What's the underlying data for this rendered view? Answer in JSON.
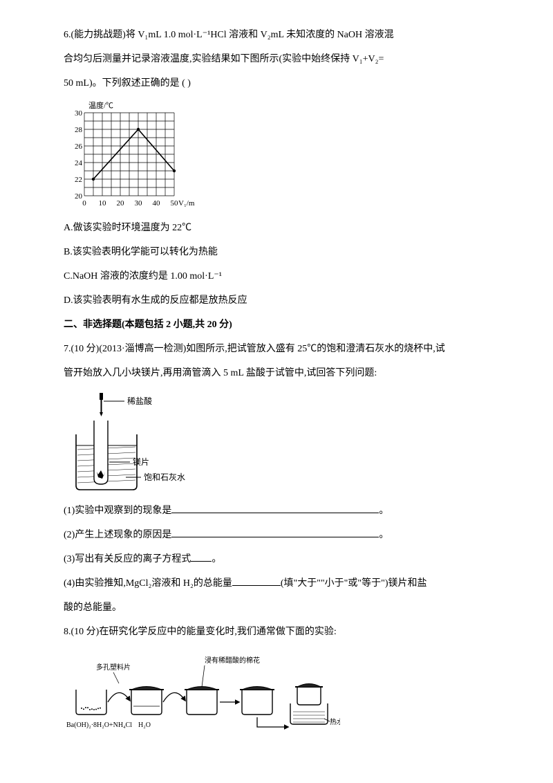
{
  "q6": {
    "line1": "6.(能力挑战题)将 V₁mL 1.0 mol·L⁻¹HCl 溶液和 V₂mL 未知浓度的 NaOH 溶液混",
    "line2": "合均匀后测量并记录溶液温度,实验结果如下图所示(实验中始终保持 V₁+V₂=",
    "line3": "50 mL)。下列叙述正确的是  (      )",
    "optA": "A.做该实验时环境温度为 22℃",
    "optB": "B.该实验表明化学能可以转化为热能",
    "optC": "C.NaOH 溶液的浓度约是 1.00 mol·L⁻¹",
    "optD": "D.该实验表明有水生成的反应都是放热反应"
  },
  "chart": {
    "y_label": "温度/℃",
    "x_label": "V₁/mL",
    "y_ticks": [
      20,
      22,
      24,
      26,
      28,
      30
    ],
    "x_ticks": [
      0,
      10,
      20,
      30,
      40,
      50
    ],
    "points_x": [
      5,
      30,
      50
    ],
    "points_y": [
      22,
      28,
      23
    ],
    "grid_color": "#000000",
    "line_color": "#000000",
    "bg": "#ffffff"
  },
  "section2": "二、非选择题(本题包括 2 小题,共 20 分)",
  "q7": {
    "line1": "7.(10 分)(2013·淄博高一检测)如图所示,把试管放入盛有 25℃的饱和澄清石灰水的烧杯中,试",
    "line2": "管开始放入几小块镁片,再用滴管滴入 5 mL 盐酸于试管中,试回答下列问题:",
    "diagram": {
      "label_hcl": "稀盐酸",
      "label_mg": "镁片",
      "label_lime": "饱和石灰水"
    },
    "p1_prefix": "(1)实验中观察到的现象是",
    "p1_suffix": "。",
    "p2_prefix": "(2)产生上述现象的原因是",
    "p2_suffix": "。",
    "p3": "(3)写出有关反应的离子方程式",
    "p3_suffix": "。",
    "p4a": "(4)由实验推知,MgCl₂溶液和 H₂的总能量",
    "p4b": "(填\"大于\"\"小于\"或\"等于\")镁片和盐",
    "p4c": "酸的总能量。"
  },
  "q8": {
    "line1": "8.(10 分)在研究化学反应中的能量变化时,我们通常做下面的实验:",
    "diagram": {
      "label_sheet": "多孔塑料片",
      "label_cotton": "浸有稀醋酸的棉花",
      "label_h2o": "H₂O",
      "label_hotwater": "热水",
      "label_reagent": "Ba(OH)₂·8H₂O+NH₄Cl"
    }
  }
}
